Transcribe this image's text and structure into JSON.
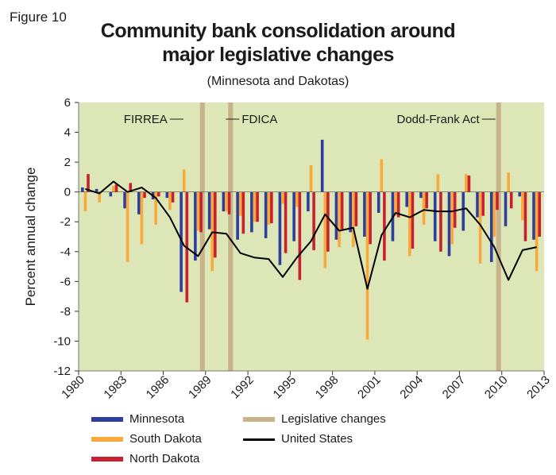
{
  "figure_label": "Figure 10",
  "chart_data": {
    "type": "bar",
    "title": "Community bank consolidation around major legislative changes",
    "title_line1": "Community bank consolidation around",
    "title_line2": "major legislative changes",
    "subtitle": "(Minnesota and Dakotas)",
    "ylabel": "Percent annual change",
    "xlabel": "",
    "ylim": [
      -12,
      6
    ],
    "yticks": [
      6,
      4,
      2,
      0,
      -2,
      -4,
      -6,
      -8,
      -10,
      -12
    ],
    "xlim": [
      1980,
      2013
    ],
    "xticks": [
      "1980",
      "1983",
      "1986",
      "1989",
      "1992",
      "1995",
      "1998",
      "2001",
      "2004",
      "2007",
      "2010",
      "2013"
    ],
    "plot_background": "#dde6b6",
    "years": [
      1980,
      1981,
      1982,
      1983,
      1984,
      1985,
      1986,
      1987,
      1988,
      1989,
      1990,
      1991,
      1992,
      1993,
      1994,
      1995,
      1996,
      1997,
      1998,
      1999,
      2000,
      2001,
      2002,
      2003,
      2004,
      2005,
      2006,
      2007,
      2008,
      2009,
      2010,
      2011,
      2012
    ],
    "series": [
      {
        "name": "Minnesota",
        "color": "#2e3e9e",
        "values": [
          0.3,
          0.2,
          -0.3,
          -1.1,
          -1.5,
          -0.5,
          -0.4,
          -6.7,
          -4.6,
          -2.5,
          -1.3,
          -3.2,
          -2.7,
          -3.1,
          -4.9,
          -3.3,
          -1.3,
          3.5,
          -3.2,
          -2.7,
          -3.0,
          -1.4,
          -3.3,
          -1.0,
          -0.4,
          -3.3,
          -4.3,
          -2.6,
          -1.7,
          -4.7,
          -2.3,
          -0.3,
          -3.2
        ]
      },
      {
        "name": "South Dakota",
        "color": "#f9a93c",
        "values": [
          -1.3,
          -0.7,
          0.4,
          -4.7,
          -3.5,
          -2.2,
          -1.2,
          1.5,
          -2.6,
          -5.3,
          -1.3,
          -1.6,
          -2.0,
          -2.2,
          -0.8,
          -1.0,
          1.8,
          -5.1,
          -3.7,
          -3.7,
          -9.9,
          2.2,
          -1.6,
          -4.3,
          -2.2,
          1.2,
          -3.5,
          1.2,
          -4.8,
          -3.0,
          1.3,
          -1.9,
          -5.3
        ]
      },
      {
        "name": "North Dakota",
        "color": "#c8202e",
        "values": [
          1.2,
          0.0,
          0.5,
          0.6,
          -0.4,
          -0.3,
          -0.7,
          -7.4,
          -2.7,
          -4.4,
          -1.5,
          -2.8,
          -2.0,
          -2.1,
          -4.1,
          -5.9,
          -3.9,
          -4.0,
          -2.5,
          -2.3,
          -3.5,
          -4.6,
          -1.7,
          -3.8,
          -1.1,
          -4.0,
          -2.4,
          1.1,
          -1.6,
          -1.2,
          -1.1,
          -3.3,
          -3.0
        ]
      }
    ],
    "line_series": {
      "name": "United States",
      "color": "#000000",
      "values": [
        0.2,
        -0.1,
        0.7,
        0.0,
        0.3,
        -0.4,
        -1.7,
        -3.6,
        -4.3,
        -2.7,
        -2.8,
        -4.1,
        -4.4,
        -4.5,
        -5.7,
        -4.4,
        -3.3,
        -1.5,
        -2.6,
        -2.4,
        -6.5,
        -2.9,
        -1.4,
        -1.7,
        -1.2,
        -1.3,
        -1.3,
        -1.1,
        -2.2,
        -3.7,
        -5.9,
        -3.9,
        -3.7
      ]
    },
    "legislative_changes": {
      "name": "Legislative changes",
      "color": "#c7b28a",
      "events": [
        {
          "label": "FIRREA",
          "year": 1989
        },
        {
          "label": "FDICA",
          "year": 1991
        },
        {
          "label": "Dodd-Frank Act",
          "year": 2010
        }
      ]
    },
    "legend_position": "bottom"
  }
}
